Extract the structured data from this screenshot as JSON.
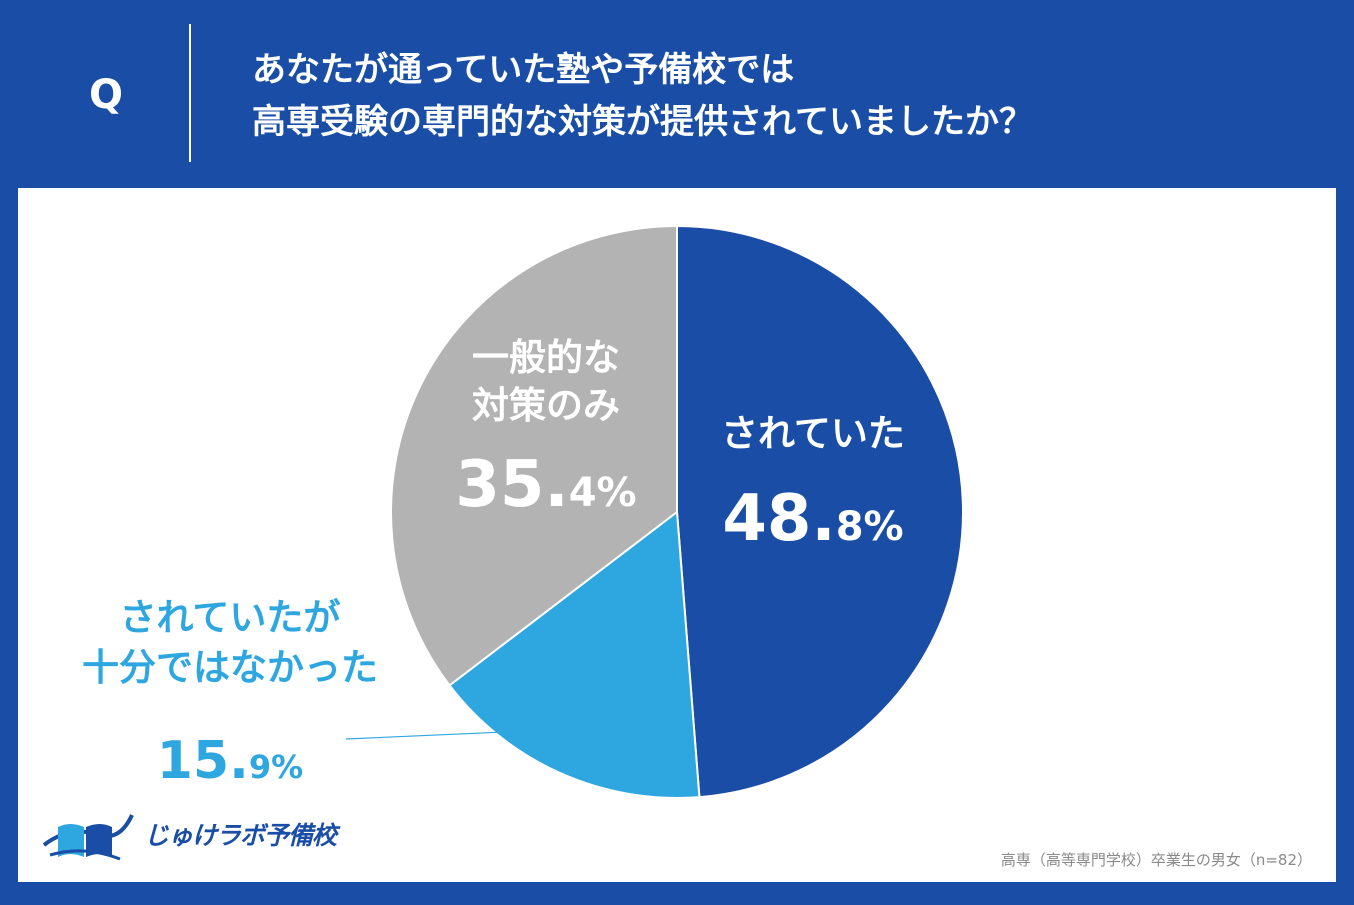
{
  "question": {
    "mark": "Q",
    "line1": "あなたが通っていた塾や予備校では",
    "line2": "高専受験の専門的な対策が提供されていましたか？"
  },
  "chart_data": {
    "type": "pie",
    "title": "あなたが通っていた塾や予備校では高専受験の専門的な対策が提供されていましたか？",
    "slices": [
      {
        "name": "されていた",
        "label_lines": [
          "されていた"
        ],
        "value": 48.8,
        "num": "48.",
        "dec": "8",
        "color": "#1a4ea6",
        "text_color": "#ffffff"
      },
      {
        "name": "されていたが十分ではなかった",
        "label_lines": [
          "されていたが",
          "十分ではなかった"
        ],
        "value": 15.9,
        "num": "15.",
        "dec": "9",
        "color": "#2ea6e0",
        "text_color": "#2ea6e0"
      },
      {
        "name": "一般的な対策のみ",
        "label_lines": [
          "一般的な",
          "対策のみ"
        ],
        "value": 35.4,
        "num": "35.",
        "dec": "4",
        "color": "#b3b3b3",
        "text_color": "#ffffff"
      }
    ],
    "start": "12 o'clock",
    "direction": "clockwise",
    "unit": "%"
  },
  "footnote": "高専（高等専門学校）卒業生の男女（n=82）",
  "logo": {
    "text": "じゅけラボ予備校",
    "icon": "book-icon"
  }
}
